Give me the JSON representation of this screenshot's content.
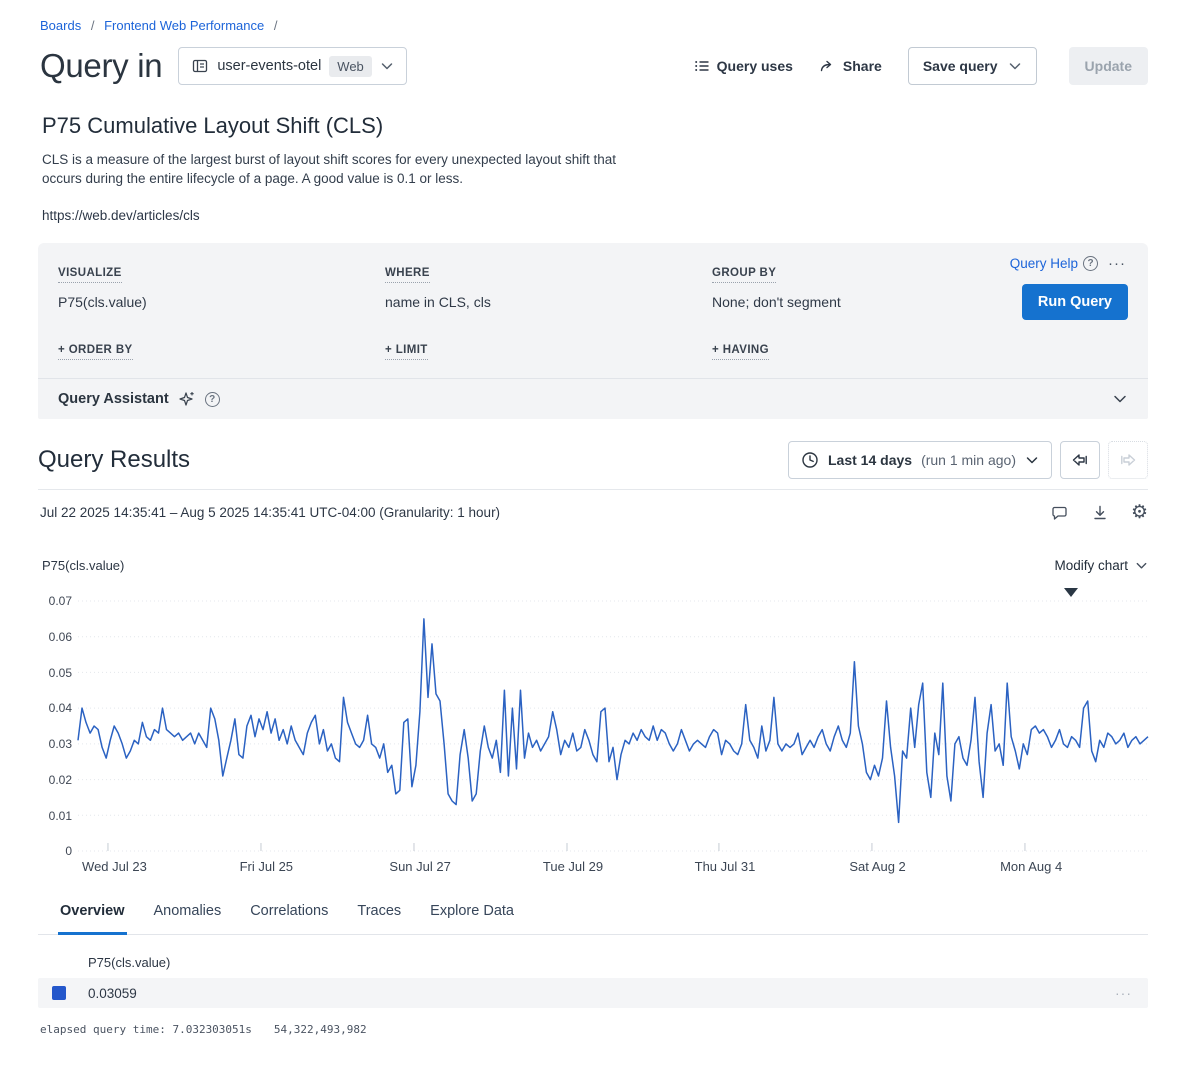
{
  "breadcrumb": {
    "items": [
      "Boards",
      "Frontend Web Performance"
    ],
    "separator": "/"
  },
  "header": {
    "title": "Query in",
    "dataset": {
      "name": "user-events-otel",
      "badge": "Web"
    },
    "actions": {
      "query_uses": "Query uses",
      "share": "Share",
      "save_query": "Save query",
      "update": "Update"
    }
  },
  "query_card": {
    "title": "P75 Cumulative Layout Shift (CLS)",
    "description": "CLS is a measure of the largest burst of layout shift scores for every unexpected layout shift that occurs during the entire lifecycle of a page. A good value is 0.1 or less.",
    "link": "https://web.dev/articles/cls"
  },
  "builder": {
    "visualize_label": "VISUALIZE",
    "visualize_value": "P75(cls.value)",
    "where_label": "WHERE",
    "where_value": "name in CLS, cls",
    "group_by_label": "GROUP BY",
    "group_by_value": "None; don't segment",
    "order_by_label": "+ ORDER BY",
    "limit_label": "+ LIMIT",
    "having_label": "+ HAVING",
    "query_help": "Query Help",
    "more": "···",
    "run_query": "Run Query",
    "assistant_label": "Query Assistant"
  },
  "results": {
    "heading": "Query Results",
    "time_button_main": "Last 14 days",
    "time_button_sub": "(run 1 min ago)",
    "time_detail": "Jul 22 2025 14:35:41 – Aug 5 2025 14:35:41 UTC-04:00 (Granularity: 1 hour)",
    "series_label": "P75(cls.value)",
    "modify_chart": "Modify chart"
  },
  "chart_data": {
    "type": "line",
    "title": "P75(cls.value)",
    "granularity": "1 hour",
    "x_range": [
      "Jul 22 2025 14:35:41",
      "Aug 5 2025 14:35:41"
    ],
    "ylim": [
      0,
      0.07
    ],
    "yticks": [
      {
        "label": "0.07",
        "value": 0.07
      },
      {
        "label": "0.06",
        "value": 0.06
      },
      {
        "label": "0.05",
        "value": 0.05
      },
      {
        "label": "0.04",
        "value": 0.04
      },
      {
        "label": "0.03",
        "value": 0.03
      },
      {
        "label": "0.02",
        "value": 0.02
      },
      {
        "label": "0.01",
        "value": 0.01
      },
      {
        "label": "0",
        "value": 0
      }
    ],
    "x_labels": [
      {
        "label": "Wed Jul 23",
        "f": 0.028
      },
      {
        "label": "Fri Jul 25",
        "f": 0.171
      },
      {
        "label": "Sun Jul 27",
        "f": 0.314
      },
      {
        "label": "Tue Jul 29",
        "f": 0.457
      },
      {
        "label": "Thu Jul 31",
        "f": 0.599
      },
      {
        "label": "Sat Aug 2",
        "f": 0.742
      },
      {
        "label": "Mon Aug 4",
        "f": 0.885
      }
    ],
    "line_color": "#2b62c2",
    "grid": true,
    "values": [
      0.031,
      0.04,
      0.036,
      0.033,
      0.035,
      0.034,
      0.029,
      0.026,
      0.031,
      0.035,
      0.033,
      0.03,
      0.026,
      0.028,
      0.031,
      0.03,
      0.036,
      0.032,
      0.031,
      0.034,
      0.033,
      0.04,
      0.034,
      0.033,
      0.032,
      0.033,
      0.031,
      0.032,
      0.033,
      0.03,
      0.033,
      0.031,
      0.029,
      0.04,
      0.037,
      0.031,
      0.021,
      0.026,
      0.031,
      0.037,
      0.027,
      0.026,
      0.035,
      0.038,
      0.032,
      0.037,
      0.034,
      0.039,
      0.033,
      0.037,
      0.031,
      0.034,
      0.03,
      0.035,
      0.031,
      0.029,
      0.027,
      0.033,
      0.036,
      0.038,
      0.03,
      0.034,
      0.028,
      0.03,
      0.026,
      0.025,
      0.043,
      0.036,
      0.033,
      0.03,
      0.029,
      0.031,
      0.038,
      0.03,
      0.029,
      0.026,
      0.03,
      0.022,
      0.024,
      0.016,
      0.017,
      0.036,
      0.037,
      0.018,
      0.024,
      0.039,
      0.065,
      0.043,
      0.058,
      0.044,
      0.042,
      0.03,
      0.016,
      0.014,
      0.013,
      0.027,
      0.034,
      0.026,
      0.014,
      0.016,
      0.028,
      0.035,
      0.029,
      0.026,
      0.031,
      0.022,
      0.045,
      0.021,
      0.04,
      0.023,
      0.045,
      0.026,
      0.033,
      0.029,
      0.031,
      0.028,
      0.03,
      0.032,
      0.039,
      0.034,
      0.027,
      0.031,
      0.029,
      0.033,
      0.028,
      0.029,
      0.034,
      0.031,
      0.027,
      0.025,
      0.039,
      0.04,
      0.025,
      0.029,
      0.02,
      0.027,
      0.031,
      0.03,
      0.033,
      0.031,
      0.034,
      0.032,
      0.031,
      0.035,
      0.031,
      0.034,
      0.033,
      0.03,
      0.028,
      0.03,
      0.034,
      0.031,
      0.028,
      0.03,
      0.031,
      0.03,
      0.029,
      0.032,
      0.034,
      0.033,
      0.027,
      0.031,
      0.03,
      0.028,
      0.027,
      0.03,
      0.041,
      0.031,
      0.029,
      0.026,
      0.035,
      0.028,
      0.031,
      0.043,
      0.03,
      0.028,
      0.03,
      0.029,
      0.03,
      0.033,
      0.027,
      0.029,
      0.031,
      0.029,
      0.032,
      0.034,
      0.03,
      0.028,
      0.032,
      0.035,
      0.031,
      0.029,
      0.033,
      0.053,
      0.035,
      0.03,
      0.022,
      0.02,
      0.024,
      0.021,
      0.026,
      0.042,
      0.029,
      0.021,
      0.008,
      0.028,
      0.026,
      0.04,
      0.029,
      0.041,
      0.047,
      0.022,
      0.015,
      0.033,
      0.027,
      0.047,
      0.021,
      0.014,
      0.03,
      0.032,
      0.026,
      0.024,
      0.031,
      0.043,
      0.025,
      0.015,
      0.033,
      0.041,
      0.028,
      0.03,
      0.024,
      0.047,
      0.032,
      0.028,
      0.023,
      0.03,
      0.027,
      0.034,
      0.035,
      0.033,
      0.034,
      0.032,
      0.029,
      0.031,
      0.034,
      0.03,
      0.029,
      0.032,
      0.031,
      0.029,
      0.04,
      0.042,
      0.028,
      0.025,
      0.031,
      0.029,
      0.033,
      0.032,
      0.03,
      0.031,
      0.033,
      0.029,
      0.031,
      0.032,
      0.03,
      0.031,
      0.032
    ]
  },
  "tabs": [
    {
      "label": "Overview",
      "active": true
    },
    {
      "label": "Anomalies",
      "active": false
    },
    {
      "label": "Correlations",
      "active": false
    },
    {
      "label": "Traces",
      "active": false
    },
    {
      "label": "Explore Data",
      "active": false
    }
  ],
  "summary_table": {
    "column": "P75(cls.value)",
    "rows": [
      {
        "value": "0.03059",
        "swatch": "#2457cb"
      }
    ],
    "row_menu": "···"
  },
  "footer": {
    "elapsed": "elapsed query time: 7.032303051s",
    "events": "54,322,493,982"
  },
  "colors": {
    "accent": "#1572cf",
    "link": "#1c64d9",
    "line": "#2b62c2",
    "swatch": "#2457cb"
  }
}
